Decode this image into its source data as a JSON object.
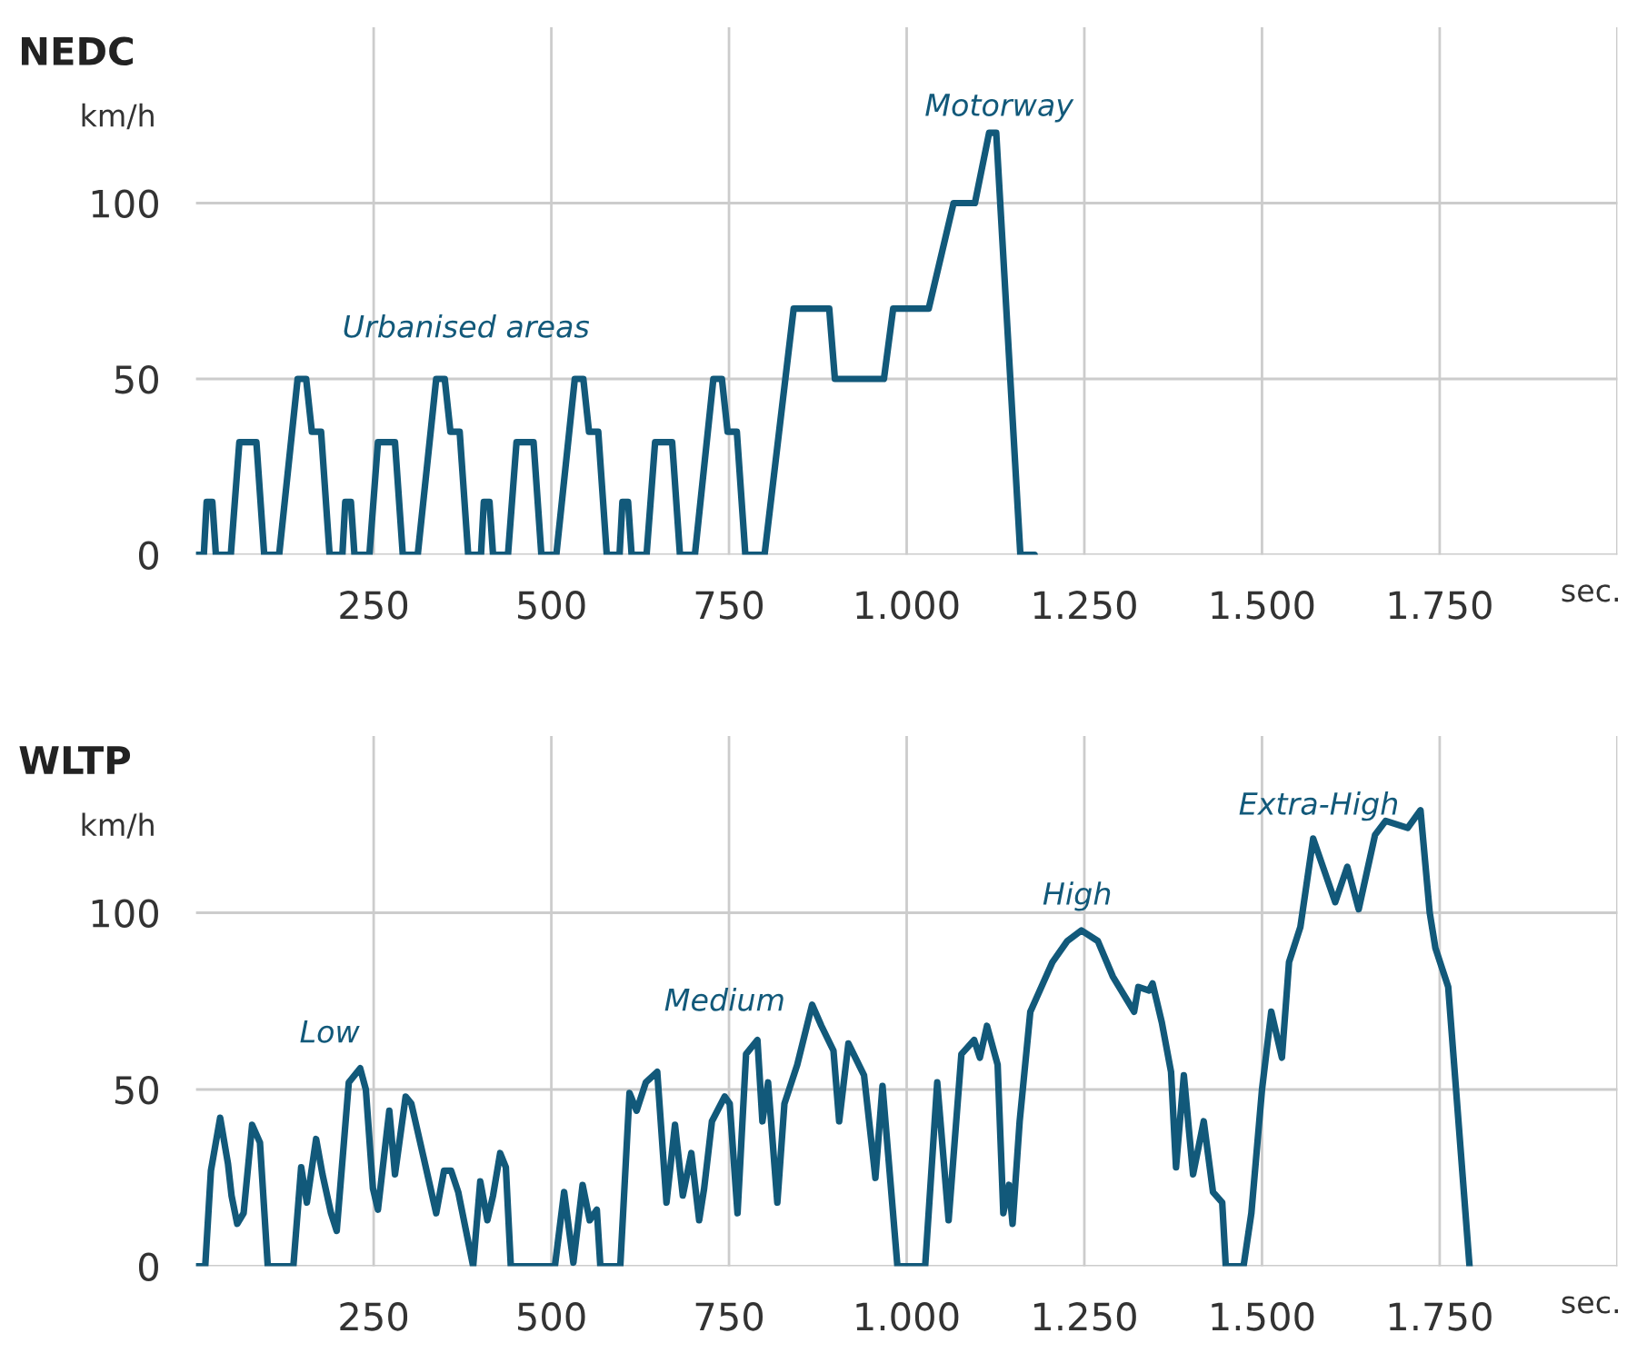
{
  "chart_data": [
    {
      "type": "line",
      "title": "NEDC",
      "xlabel": "sec.",
      "ylabel": "km/h",
      "xlim": [
        0,
        2000
      ],
      "ylim": [
        0,
        150
      ],
      "xticks": [
        250,
        500,
        750,
        {
          "value": 1000,
          "label": "1.000"
        },
        {
          "value": 1250,
          "label": "1.250"
        },
        {
          "value": 1500,
          "label": "1.500"
        },
        {
          "value": 1750,
          "label": "1.750"
        },
        {
          "value": 2000,
          "label": null
        }
      ],
      "yticks": [
        0,
        50,
        100
      ],
      "grid": true,
      "legend": false,
      "marker": "none",
      "line_style": "solid",
      "annotations": [
        "Urbanised areas",
        "Motorway"
      ],
      "series": [
        {
          "color": "#12597a",
          "x": [
            0,
            11,
            15,
            23,
            28,
            49,
            61,
            85,
            96,
            117,
            143,
            155,
            163,
            176,
            188,
            206,
            210,
            218,
            223,
            244,
            256,
            280,
            291,
            312,
            338,
            350,
            358,
            371,
            383,
            401,
            405,
            413,
            418,
            439,
            451,
            475,
            486,
            507,
            533,
            545,
            553,
            566,
            578,
            596,
            600,
            608,
            613,
            634,
            646,
            670,
            681,
            702,
            728,
            740,
            748,
            761,
            773,
            800,
            841,
            891,
            899,
            968,
            981,
            1031,
            1066,
            1096,
            1116,
            1126,
            1160,
            1180
          ],
          "values": [
            0,
            0,
            15,
            15,
            0,
            0,
            32,
            32,
            0,
            0,
            50,
            50,
            35,
            35,
            0,
            0,
            15,
            15,
            0,
            0,
            32,
            32,
            0,
            0,
            50,
            50,
            35,
            35,
            0,
            0,
            15,
            15,
            0,
            0,
            32,
            32,
            0,
            0,
            50,
            50,
            35,
            35,
            0,
            0,
            15,
            15,
            0,
            0,
            32,
            32,
            0,
            0,
            50,
            50,
            35,
            35,
            0,
            0,
            70,
            70,
            50,
            50,
            70,
            70,
            100,
            100,
            120,
            120,
            0,
            0
          ]
        }
      ]
    },
    {
      "type": "line",
      "title": "WLTP",
      "xlabel": "sec.",
      "ylabel": "km/h",
      "xlim": [
        0,
        2000
      ],
      "ylim": [
        0,
        150
      ],
      "xticks": [
        250,
        500,
        750,
        {
          "value": 1000,
          "label": "1.000"
        },
        {
          "value": 1250,
          "label": "1.250"
        },
        {
          "value": 1500,
          "label": "1.500"
        },
        {
          "value": 1750,
          "label": "1.750"
        },
        {
          "value": 2000,
          "label": null
        }
      ],
      "yticks": [
        0,
        50,
        100
      ],
      "grid": true,
      "legend": false,
      "marker": "none",
      "line_style": "solid",
      "annotations": [
        "Low",
        "Medium",
        "High",
        "Extra-High"
      ],
      "series": [
        {
          "color": "#12597a",
          "x": [
            0,
            13,
            21,
            34,
            45,
            50,
            58,
            67,
            79,
            90,
            101,
            137,
            148,
            156,
            169,
            178,
            190,
            198,
            215,
            231,
            239,
            249,
            256,
            272,
            280,
            295,
            303,
            320,
            338,
            349,
            359,
            369,
            390,
            400,
            410,
            418,
            428,
            436,
            443,
            505,
            518,
            531,
            544,
            554,
            564,
            569,
            597,
            610,
            620,
            633,
            649,
            662,
            674,
            685,
            697,
            708,
            715,
            726,
            744,
            751,
            762,
            774,
            790,
            797,
            805,
            818,
            828,
            846,
            867,
            880,
            897,
            905,
            918,
            940,
            956,
            966,
            987,
            1026,
            1043,
            1059,
            1077,
            1095,
            1103,
            1113,
            1128,
            1136,
            1144,
            1149,
            1159,
            1174,
            1205,
            1226,
            1246,
            1269,
            1290,
            1320,
            1326,
            1341,
            1346,
            1359,
            1372,
            1379,
            1390,
            1403,
            1418,
            1431,
            1444,
            1449,
            1474,
            1485,
            1500,
            1513,
            1528,
            1538,
            1554,
            1572,
            1603,
            1620,
            1636,
            1659,
            1674,
            1705,
            1723,
            1736,
            1744,
            1762,
            1792
          ],
          "values": [
            0,
            0,
            27,
            42,
            29,
            20,
            12,
            15,
            40,
            35,
            0,
            0,
            28,
            18,
            36,
            26,
            15,
            10,
            52,
            56,
            50,
            22,
            16,
            44,
            26,
            48,
            46,
            31,
            15,
            27,
            27,
            21,
            0,
            24,
            13,
            20,
            32,
            28,
            0,
            0,
            21,
            1,
            23,
            13,
            16,
            0,
            0,
            49,
            44,
            52,
            55,
            18,
            40,
            20,
            32,
            13,
            22,
            41,
            48,
            46,
            15,
            60,
            64,
            41,
            52,
            18,
            46,
            57,
            74,
            68,
            61,
            41,
            63,
            54,
            25,
            51,
            0,
            0,
            52,
            13,
            60,
            64,
            59,
            68,
            57,
            15,
            23,
            12,
            41,
            72,
            86,
            92,
            95,
            92,
            82,
            72,
            79,
            78,
            80,
            69,
            55,
            28,
            54,
            26,
            41,
            21,
            18,
            0,
            0,
            15,
            50,
            72,
            59,
            86,
            96,
            121,
            103,
            113,
            101,
            122,
            126,
            124,
            129,
            100,
            90,
            79,
            0
          ]
        }
      ]
    }
  ]
}
